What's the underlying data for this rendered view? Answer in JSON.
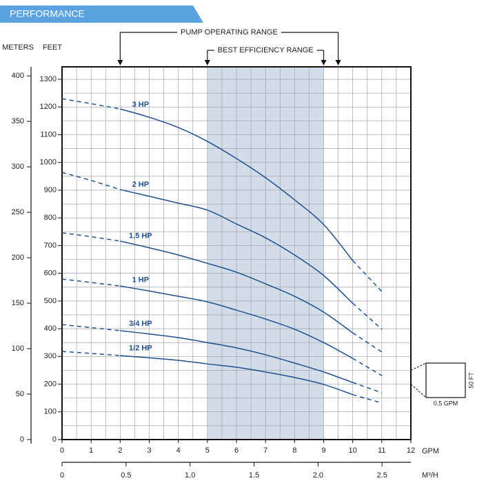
{
  "chart_data": {
    "type": "line",
    "title": "PERFORMANCE",
    "x_label": "GPM",
    "x2_label": "M³/H",
    "y_label": "FEET",
    "y2_label": "METERS",
    "x": [
      0,
      1,
      2,
      3,
      4,
      5,
      6,
      7,
      8,
      9,
      10,
      11
    ],
    "solid_xrange": [
      2,
      10
    ],
    "series": [
      {
        "name": "3 HP",
        "color": "#1f4e8c",
        "values": [
          1230,
          1212,
          1193,
          1163,
          1126,
          1076,
          1014,
          945,
          865,
          776,
          646,
          534
        ]
      },
      {
        "name": "2 HP",
        "color": "#1f4e8c",
        "values": [
          964,
          935,
          902,
          878,
          853,
          828,
          778,
          728,
          666,
          592,
          492,
          398
        ]
      },
      {
        "name": "1.5 HP",
        "color": "#1f4e8c",
        "values": [
          746,
          732,
          716,
          692,
          666,
          636,
          604,
          562,
          517,
          460,
          385,
          316
        ]
      },
      {
        "name": "1 HP",
        "color": "#1f4e8c",
        "values": [
          579,
          567,
          554,
          536,
          517,
          497,
          467,
          435,
          398,
          350,
          293,
          231
        ]
      },
      {
        "name": "3/4 HP",
        "color": "#1f4e8c",
        "values": [
          415,
          404,
          393,
          381,
          368,
          350,
          331,
          306,
          276,
          244,
          206,
          169
        ]
      },
      {
        "name": "1/2 HP",
        "color": "#1f4e8c",
        "values": [
          318,
          311,
          303,
          295,
          286,
          273,
          261,
          244,
          224,
          199,
          162,
          132
        ]
      }
    ],
    "xlim": [
      0,
      12
    ],
    "xticks": [
      0,
      1,
      2,
      3,
      4,
      5,
      6,
      7,
      8,
      9,
      10,
      11,
      12
    ],
    "x2lim": [
      0,
      2.725
    ],
    "x2ticks": [
      0,
      0.5,
      {
        "value": 1,
        "label": "1.0"
      },
      1.5,
      {
        "value": 2,
        "label": "2.0"
      },
      2.5
    ],
    "ylim": [
      0,
      1345
    ],
    "yticks": [
      0,
      100,
      200,
      300,
      400,
      500,
      600,
      700,
      800,
      900,
      1000,
      1100,
      1200,
      1300
    ],
    "y2lim": [
      0,
      410
    ],
    "y2ticks": [
      0,
      50,
      100,
      150,
      200,
      250,
      300,
      350,
      400
    ],
    "grid": true,
    "grid_step": {
      "x": 0.5,
      "y": 50
    },
    "ranges": [
      {
        "label": "PUMP OPERATING RANGE",
        "from": 2,
        "to": 9.5
      },
      {
        "label": "BEST EFFICIENCY RANGE",
        "from": 5,
        "to": 9,
        "shaded": true,
        "color": "#d3dde9"
      }
    ],
    "scale_inset": {
      "height_label": "50 FT",
      "width_label": "0.5 GPM"
    }
  }
}
